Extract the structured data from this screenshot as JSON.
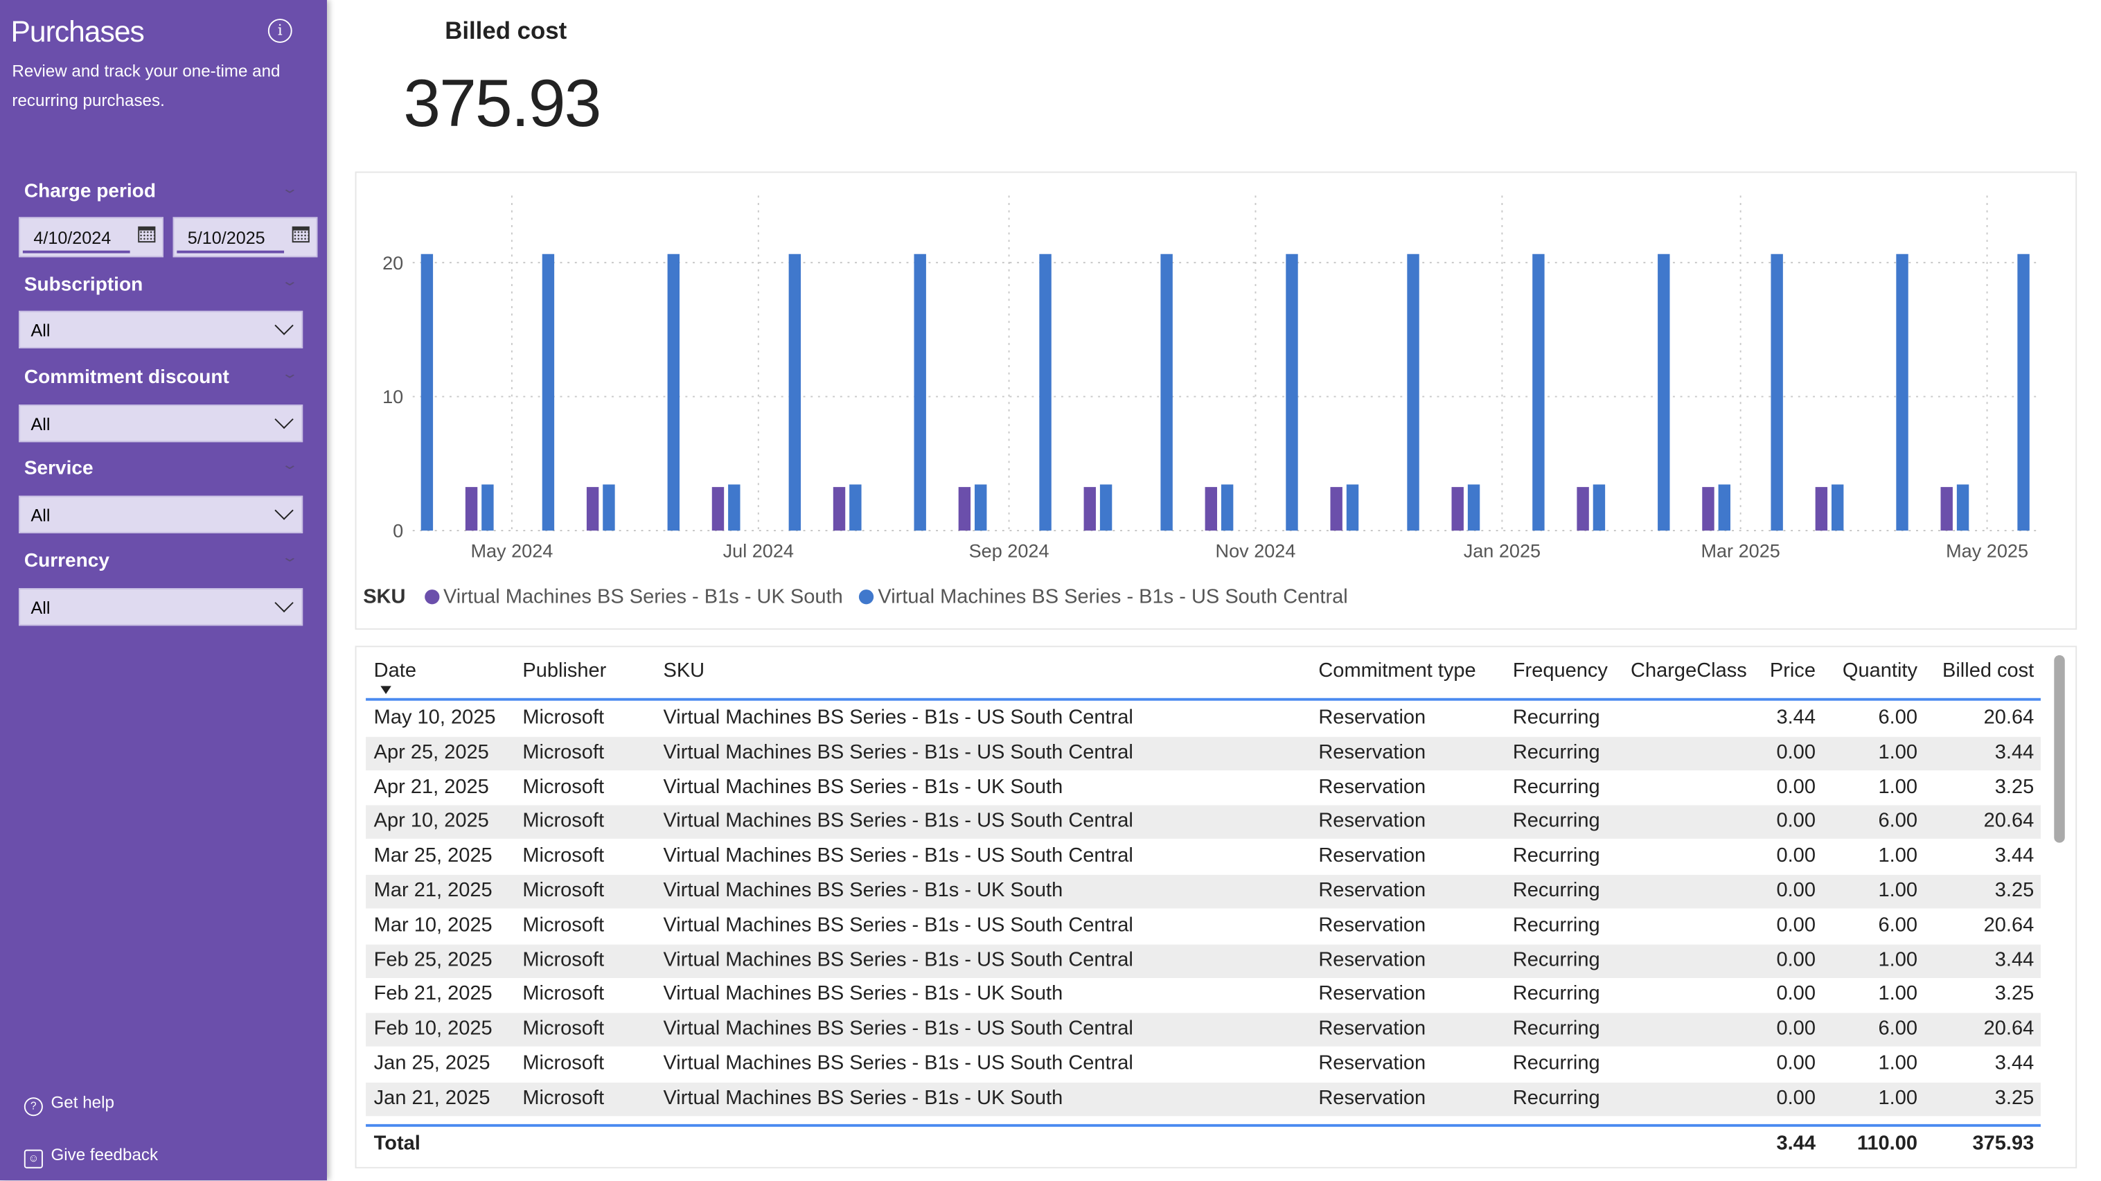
{
  "sidebar": {
    "title": "Purchases",
    "description": "Review and track your one-time and recurring purchases.",
    "charge_period": {
      "label": "Charge period",
      "start": "4/10/2024",
      "end": "5/10/2025"
    },
    "filters": [
      {
        "label": "Subscription",
        "value": "All"
      },
      {
        "label": "Commitment discount",
        "value": "All"
      },
      {
        "label": "Service",
        "value": "All"
      },
      {
        "label": "Currency",
        "value": "All"
      }
    ],
    "get_help": "Get help",
    "give_feedback": "Give feedback",
    "accent": "#6B4FAB"
  },
  "kpi": {
    "title": "Billed cost",
    "value": "375.93"
  },
  "chart_data": {
    "type": "bar",
    "xlabel": "",
    "ylabel": "",
    "ylim": [
      0,
      22
    ],
    "yticks": [
      "0",
      "10",
      "20"
    ],
    "xticks": [
      {
        "date": "2024-05-01",
        "label": "May 2024"
      },
      {
        "date": "2024-07-01",
        "label": "Jul 2024"
      },
      {
        "date": "2024-09-01",
        "label": "Sep 2024"
      },
      {
        "date": "2024-11-01",
        "label": "Nov 2024"
      },
      {
        "date": "2025-01-01",
        "label": "Jan 2025"
      },
      {
        "date": "2025-03-01",
        "label": "Mar 2025"
      },
      {
        "date": "2025-05-01",
        "label": "May 2025"
      }
    ],
    "grid": true,
    "legend_title": "SKU",
    "legend_position": "bottom-left",
    "series": [
      {
        "name": "Virtual Machines BS Series - B1s - UK South",
        "color": "#6B4FAB",
        "points": [
          [
            "2024-04-21",
            3.25
          ],
          [
            "2024-05-21",
            3.25
          ],
          [
            "2024-06-21",
            3.25
          ],
          [
            "2024-07-21",
            3.25
          ],
          [
            "2024-08-21",
            3.25
          ],
          [
            "2024-09-21",
            3.25
          ],
          [
            "2024-10-21",
            3.25
          ],
          [
            "2024-11-21",
            3.25
          ],
          [
            "2024-12-21",
            3.25
          ],
          [
            "2025-01-21",
            3.25
          ],
          [
            "2025-02-21",
            3.25
          ],
          [
            "2025-03-21",
            3.25
          ],
          [
            "2025-04-21",
            3.25
          ]
        ]
      },
      {
        "name": "Virtual Machines BS Series - B1s - US South Central",
        "color": "#4078CC",
        "points": [
          [
            "2024-04-10",
            20.64
          ],
          [
            "2024-04-25",
            3.44
          ],
          [
            "2024-05-10",
            20.64
          ],
          [
            "2024-05-25",
            3.44
          ],
          [
            "2024-06-10",
            20.64
          ],
          [
            "2024-06-25",
            3.44
          ],
          [
            "2024-07-10",
            20.64
          ],
          [
            "2024-07-25",
            3.44
          ],
          [
            "2024-08-10",
            20.64
          ],
          [
            "2024-08-25",
            3.44
          ],
          [
            "2024-09-10",
            20.64
          ],
          [
            "2024-09-25",
            3.44
          ],
          [
            "2024-10-10",
            20.64
          ],
          [
            "2024-10-25",
            3.44
          ],
          [
            "2024-11-10",
            20.64
          ],
          [
            "2024-11-25",
            3.44
          ],
          [
            "2024-12-10",
            20.64
          ],
          [
            "2024-12-25",
            3.44
          ],
          [
            "2025-01-10",
            20.64
          ],
          [
            "2025-01-25",
            3.44
          ],
          [
            "2025-02-10",
            20.64
          ],
          [
            "2025-02-25",
            3.44
          ],
          [
            "2025-03-10",
            20.64
          ],
          [
            "2025-03-25",
            3.44
          ],
          [
            "2025-04-10",
            20.64
          ],
          [
            "2025-04-25",
            3.44
          ],
          [
            "2025-05-10",
            20.64
          ]
        ]
      }
    ]
  },
  "table": {
    "columns": [
      "Date",
      "Publisher",
      "SKU",
      "Commitment type",
      "Frequency",
      "ChargeClass",
      "Price",
      "Quantity",
      "Billed cost"
    ],
    "rows": [
      [
        "May 10, 2025",
        "Microsoft",
        "Virtual Machines BS Series - B1s - US South Central",
        "Reservation",
        "Recurring",
        "",
        "3.44",
        "6.00",
        "20.64"
      ],
      [
        "Apr 25, 2025",
        "Microsoft",
        "Virtual Machines BS Series - B1s - US South Central",
        "Reservation",
        "Recurring",
        "",
        "0.00",
        "1.00",
        "3.44"
      ],
      [
        "Apr 21, 2025",
        "Microsoft",
        "Virtual Machines BS Series - B1s - UK South",
        "Reservation",
        "Recurring",
        "",
        "0.00",
        "1.00",
        "3.25"
      ],
      [
        "Apr 10, 2025",
        "Microsoft",
        "Virtual Machines BS Series - B1s - US South Central",
        "Reservation",
        "Recurring",
        "",
        "0.00",
        "6.00",
        "20.64"
      ],
      [
        "Mar 25, 2025",
        "Microsoft",
        "Virtual Machines BS Series - B1s - US South Central",
        "Reservation",
        "Recurring",
        "",
        "0.00",
        "1.00",
        "3.44"
      ],
      [
        "Mar 21, 2025",
        "Microsoft",
        "Virtual Machines BS Series - B1s - UK South",
        "Reservation",
        "Recurring",
        "",
        "0.00",
        "1.00",
        "3.25"
      ],
      [
        "Mar 10, 2025",
        "Microsoft",
        "Virtual Machines BS Series - B1s - US South Central",
        "Reservation",
        "Recurring",
        "",
        "0.00",
        "6.00",
        "20.64"
      ],
      [
        "Feb 25, 2025",
        "Microsoft",
        "Virtual Machines BS Series - B1s - US South Central",
        "Reservation",
        "Recurring",
        "",
        "0.00",
        "1.00",
        "3.44"
      ],
      [
        "Feb 21, 2025",
        "Microsoft",
        "Virtual Machines BS Series - B1s - UK South",
        "Reservation",
        "Recurring",
        "",
        "0.00",
        "1.00",
        "3.25"
      ],
      [
        "Feb 10, 2025",
        "Microsoft",
        "Virtual Machines BS Series - B1s - US South Central",
        "Reservation",
        "Recurring",
        "",
        "0.00",
        "6.00",
        "20.64"
      ],
      [
        "Jan 25, 2025",
        "Microsoft",
        "Virtual Machines BS Series - B1s - US South Central",
        "Reservation",
        "Recurring",
        "",
        "0.00",
        "1.00",
        "3.44"
      ],
      [
        "Jan 21, 2025",
        "Microsoft",
        "Virtual Machines BS Series - B1s - UK South",
        "Reservation",
        "Recurring",
        "",
        "0.00",
        "1.00",
        "3.25"
      ]
    ],
    "total": {
      "label": "Total",
      "price": "3.44",
      "quantity": "110.00",
      "billed_cost": "375.93"
    }
  }
}
